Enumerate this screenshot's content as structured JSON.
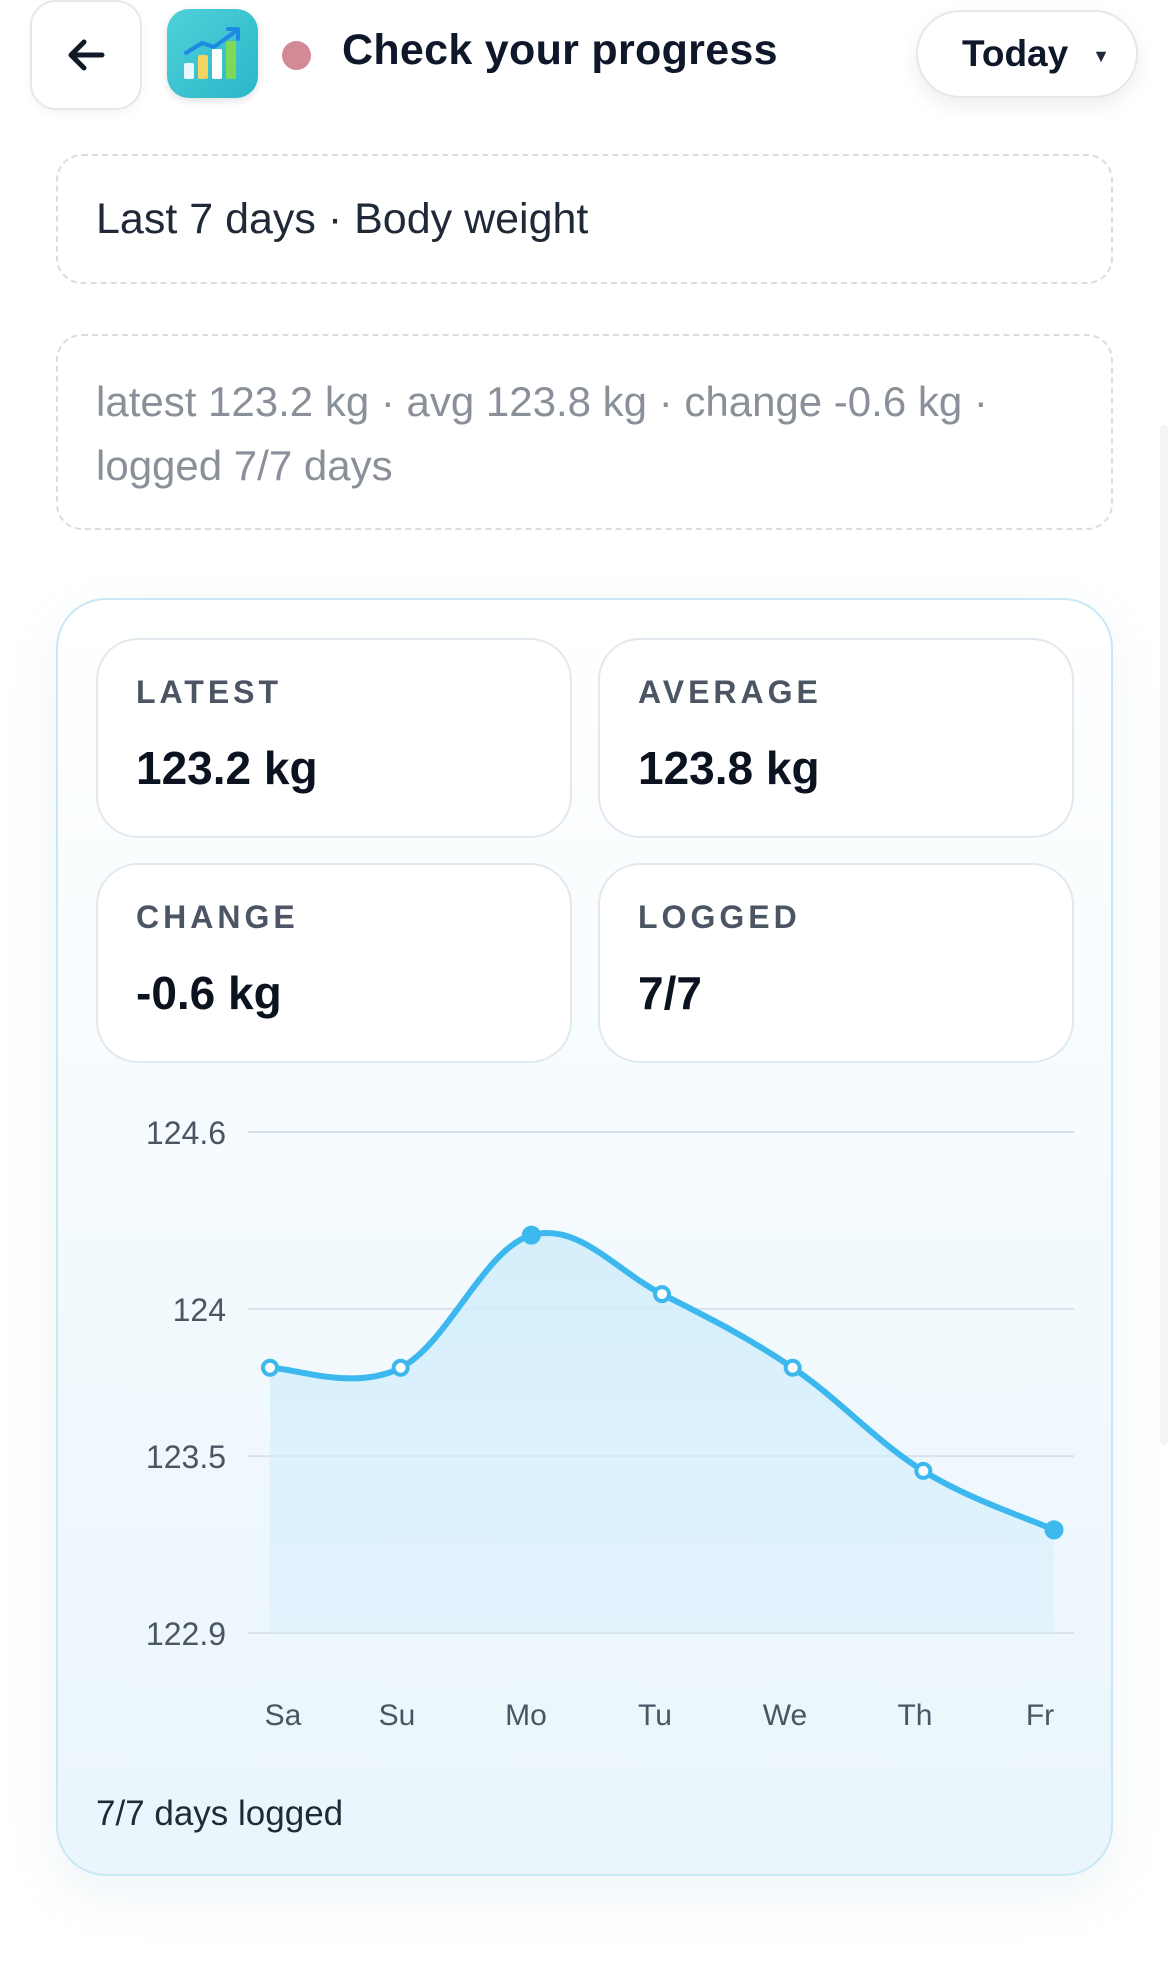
{
  "header": {
    "title": "Check your progress",
    "back_icon": "arrow-left-icon",
    "app_icon": "chart-app-icon",
    "status_color": "#d38a96",
    "period": "Today"
  },
  "subtitle": "Last 7 days · Body weight",
  "summary": "latest 123.2 kg · avg 123.8 kg · change -0.6 kg · logged 7/7 days",
  "stats": {
    "latest": {
      "label": "LATEST",
      "value": "123.2 kg"
    },
    "average": {
      "label": "AVERAGE",
      "value": "123.8 kg"
    },
    "change": {
      "label": "CHANGE",
      "value": "-0.6 kg"
    },
    "logged": {
      "label": "LOGGED",
      "value": "7/7"
    }
  },
  "footer": "7/7 days logged",
  "colors": {
    "accent": "#3db8ef",
    "fill": "#d3eefb",
    "grid": "#d9e2ea"
  },
  "chart_data": {
    "type": "area",
    "categories": [
      "Sa",
      "Su",
      "Mo",
      "Tu",
      "We",
      "Th",
      "Fr"
    ],
    "values": [
      123.8,
      123.8,
      124.25,
      124.05,
      123.8,
      123.45,
      123.25
    ],
    "ylim": [
      122.9,
      124.6
    ],
    "yticks": [
      124.6,
      124,
      123.5,
      122.9
    ],
    "ytick_labels": [
      "124.6",
      "124",
      "123.5",
      "122.9"
    ],
    "grid": true,
    "smooth": true
  }
}
